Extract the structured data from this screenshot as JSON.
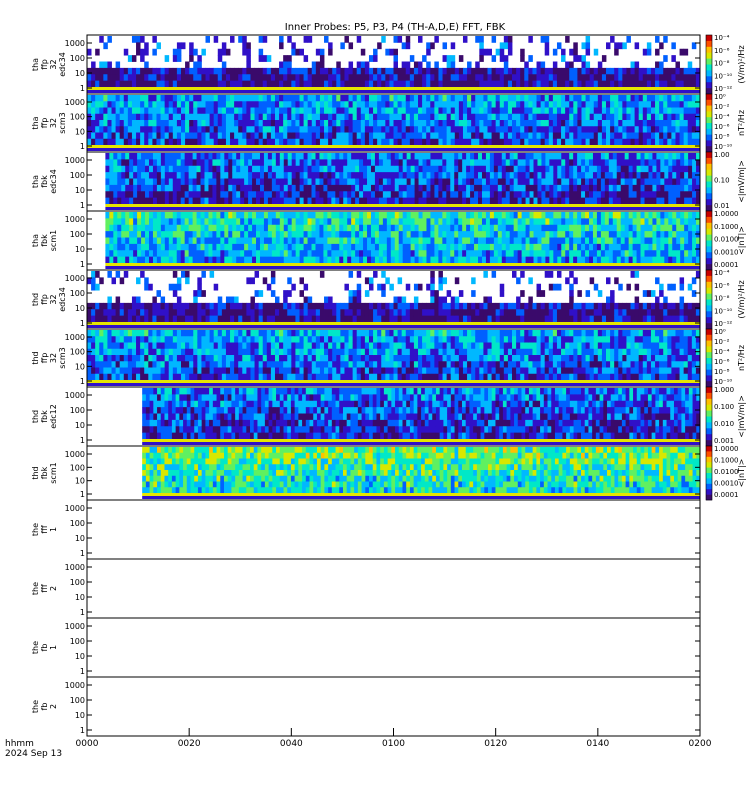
{
  "title": "Inner Probes: P5, P3, P4 (TH-A,D,E) FFT, FBK",
  "footer": {
    "unit_label": "hhmm",
    "date_label": "2024 Sep 13"
  },
  "colors": {
    "cmap": [
      "#3a0a6b",
      "#3010c8",
      "#0060ff",
      "#00b8ff",
      "#00e8c8",
      "#60f060",
      "#d8e800",
      "#ffc000",
      "#ff5000",
      "#c80000"
    ]
  },
  "chart_data": {
    "type": "heatmap",
    "x_axis": {
      "ticks": [
        "0000",
        "0020",
        "0040",
        "0100",
        "0120",
        "0140",
        "0200"
      ]
    },
    "y_ticks": [
      "1000",
      "100",
      "10",
      "1"
    ],
    "panels": [
      {
        "label": [
          "tha",
          "ffp",
          "32",
          "edc34"
        ],
        "data": true,
        "start": 0.0,
        "bg": 0.05,
        "cb_label": "(V/m)²/Hz",
        "cb_ticks": [
          "10⁻⁴",
          "10⁻⁶",
          "10⁻⁸",
          "10⁻¹⁰",
          "10⁻¹²"
        ],
        "sparse": true
      },
      {
        "label": [
          "tha",
          "ffp",
          "32",
          "scm3"
        ],
        "data": true,
        "start": 0.0,
        "bg": 0.18,
        "cb_label": "nT²/Hz",
        "cb_ticks": [
          "10⁰",
          "10⁻²",
          "10⁻⁴",
          "10⁻⁶",
          "10⁻⁸",
          "10⁻¹⁰"
        ],
        "sparse": false
      },
      {
        "label": [
          "tha",
          "fbk",
          "edc34"
        ],
        "data": true,
        "start": 0.03,
        "bg": 0.12,
        "cb_label": "<|mV/m|>",
        "cb_ticks": [
          "1.00",
          "0.10",
          "0.01"
        ],
        "sparse": false
      },
      {
        "label": [
          "tha",
          "fbk",
          "scm1"
        ],
        "data": true,
        "start": 0.03,
        "bg": 0.3,
        "cb_label": "<|nT|>",
        "cb_ticks": [
          "1.0000",
          "0.1000",
          "0.0100",
          "0.0010",
          "0.0001"
        ],
        "sparse": false
      },
      {
        "label": [
          "thd",
          "ffp",
          "32",
          "edc34"
        ],
        "data": true,
        "start": 0.0,
        "bg": 0.05,
        "cb_label": "(V/m)²/Hz",
        "cb_ticks": [
          "10⁻⁴",
          "10⁻⁶",
          "10⁻⁸",
          "10⁻¹⁰",
          "10⁻¹²"
        ],
        "sparse": true
      },
      {
        "label": [
          "thd",
          "ffp",
          "32",
          "scm3"
        ],
        "data": true,
        "start": 0.0,
        "bg": 0.18,
        "cb_label": "nT²/Hz",
        "cb_ticks": [
          "10⁰",
          "10⁻²",
          "10⁻⁴",
          "10⁻⁶",
          "10⁻⁸",
          "10⁻¹⁰"
        ],
        "sparse": false
      },
      {
        "label": [
          "thd",
          "fbk",
          "edc12"
        ],
        "data": true,
        "start": 0.09,
        "bg": 0.12,
        "cb_label": "<|mV/m|>",
        "cb_ticks": [
          "1.000",
          "0.100",
          "0.010",
          "0.001"
        ],
        "sparse": false
      },
      {
        "label": [
          "thd",
          "fbk",
          "scm1"
        ],
        "data": true,
        "start": 0.09,
        "bg": 0.4,
        "cb_label": "<|nT|>",
        "cb_ticks": [
          "1.0000",
          "0.1000",
          "0.0100",
          "0.0010",
          "0.0001"
        ],
        "sparse": false
      },
      {
        "label": [
          "the",
          "fff",
          "1"
        ],
        "data": false
      },
      {
        "label": [
          "the",
          "fff",
          "2"
        ],
        "data": false
      },
      {
        "label": [
          "the",
          "fb",
          "1"
        ],
        "data": false
      },
      {
        "label": [
          "the",
          "fb",
          "2"
        ],
        "data": false
      }
    ]
  }
}
